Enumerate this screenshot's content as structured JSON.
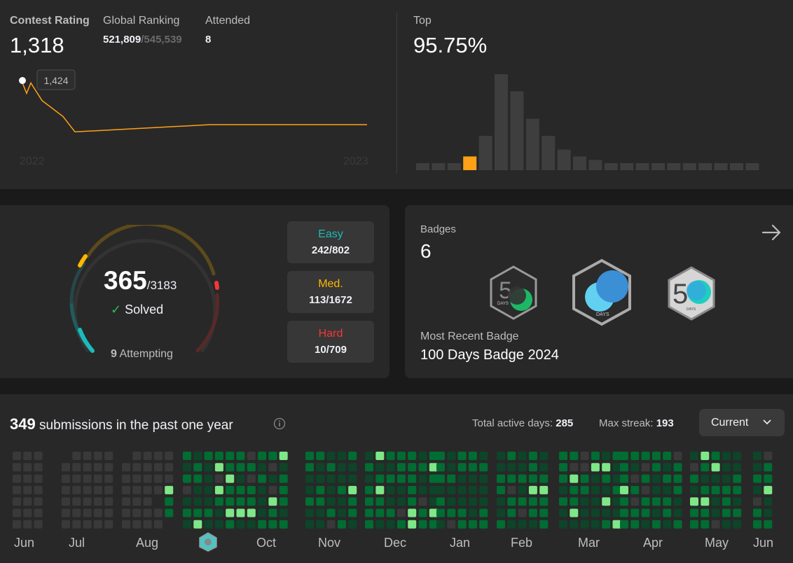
{
  "contest": {
    "rating_label": "Contest Rating",
    "rating_value": "1,318",
    "ranking_label": "Global Ranking",
    "ranking_value": "521,809",
    "ranking_total": "/545,539",
    "attended_label": "Attended",
    "attended_value": "8",
    "tooltip": "1,424",
    "x_start": "2022",
    "x_end": "2023",
    "top_label": "Top",
    "top_value": "95.75%",
    "line_points": [
      1424,
      1398,
      1424,
      1380,
      1340,
      1300,
      1318,
      1318
    ],
    "accent": "#ffa116"
  },
  "chart_data": [
    {
      "type": "line",
      "series": [
        {
          "values": [
            1424,
            1398,
            1424,
            1380,
            1340,
            1300,
            1318,
            1318
          ]
        }
      ],
      "x_tick_labels": [
        "2022",
        "2023"
      ],
      "annotations": [
        "1,424"
      ]
    },
    {
      "type": "bar",
      "values": [
        2,
        2,
        2,
        4,
        10,
        28,
        23,
        15,
        10,
        6,
        4,
        3,
        2,
        2,
        2,
        2,
        2,
        2,
        2,
        2,
        2,
        2
      ],
      "highlight_index": 3,
      "highlight_color": "#ffa116",
      "bar_color": "#3e3e3e"
    }
  ],
  "solved": {
    "count": "365",
    "total": "/3183",
    "solved_label": "Solved",
    "attempting_count": "9",
    "attempting_label": "Attempting",
    "easy_label": "Easy",
    "easy_value": "242/802",
    "med_label": "Med.",
    "med_value": "113/1672",
    "hard_label": "Hard",
    "hard_value": "10/709",
    "easy_color": "#1cbaba",
    "med_color": "#ffb700",
    "hard_color": "#f63737"
  },
  "badges": {
    "label": "Badges",
    "count": "6",
    "recent_label": "Most Recent Badge",
    "recent_value": "100 Days Badge 2024",
    "badge_texts": [
      "DAYS",
      "DAYS",
      "DAYS"
    ]
  },
  "calendar": {
    "submissions": "349",
    "submissions_label": " submissions in the past one year",
    "active_label": "Total active days: ",
    "active_value": "285",
    "streak_label": "Max streak: ",
    "streak_value": "193",
    "select_value": "Current",
    "months": [
      "Jun",
      "Jul",
      "Aug",
      "Oct",
      "Nov",
      "Dec",
      "Jan",
      "Feb",
      "Mar",
      "Apr",
      "May",
      "Jun"
    ]
  }
}
